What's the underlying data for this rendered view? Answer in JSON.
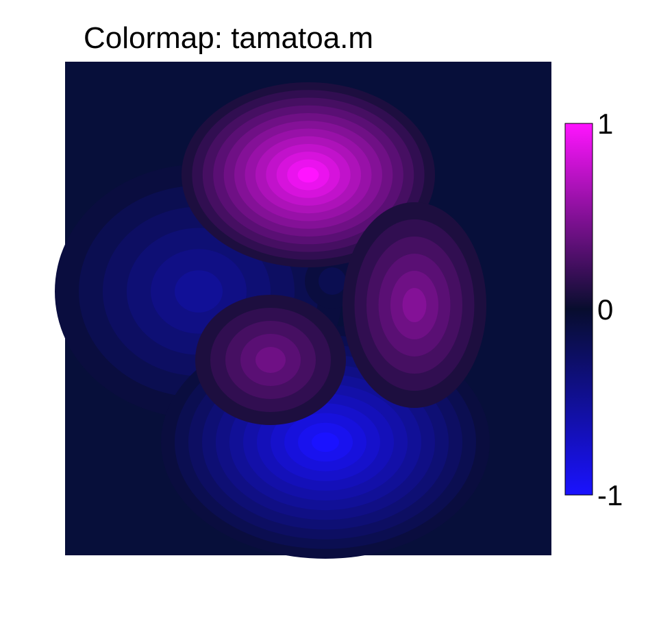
{
  "chart_data": {
    "type": "heatmap",
    "title": "Colormap: tamatoa.m",
    "xlabel": "",
    "ylabel": "",
    "grid": false,
    "axes_visible": false,
    "value_range": [
      -1,
      1
    ],
    "contour_levels": 24,
    "colorbar": {
      "position": "right",
      "ticks": [
        {
          "value": 1,
          "label": "1"
        },
        {
          "value": 0,
          "label": "0"
        },
        {
          "value": -1,
          "label": "-1"
        }
      ],
      "colors": [
        "#1a12ff",
        "#080d2e",
        "#ff14ff"
      ]
    },
    "features": [
      {
        "kind": "maximum",
        "value": 1.0
      },
      {
        "kind": "maximum",
        "value": 0.35
      },
      {
        "kind": "maximum",
        "value": 0.42
      },
      {
        "kind": "minimum",
        "value": -0.45
      },
      {
        "kind": "minimum",
        "value": -1.0
      },
      {
        "kind": "minimum",
        "value": -0.12
      }
    ]
  }
}
